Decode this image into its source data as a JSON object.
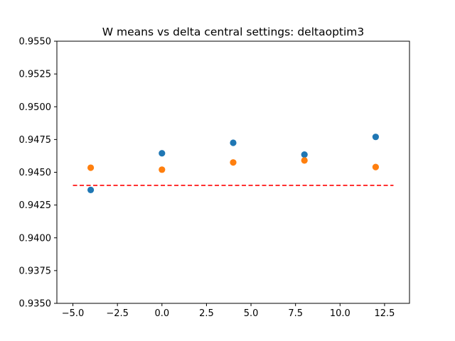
{
  "chart_data": {
    "type": "scatter",
    "title": "W means vs delta central settings: deltaoptim3",
    "xlabel": "",
    "ylabel": "",
    "xlim": [
      -5.9,
      13.9
    ],
    "ylim": [
      0.935,
      0.955
    ],
    "x_ticks": [
      -5.0,
      -2.5,
      0.0,
      2.5,
      5.0,
      7.5,
      10.0,
      12.5
    ],
    "x_tick_labels": [
      "−5.0",
      "−2.5",
      "0.0",
      "2.5",
      "5.0",
      "7.5",
      "10.0",
      "12.5"
    ],
    "y_ticks": [
      0.935,
      0.9375,
      0.94,
      0.9425,
      0.945,
      0.9475,
      0.95,
      0.9525,
      0.955
    ],
    "y_tick_labels": [
      "0.9350",
      "0.9375",
      "0.9400",
      "0.9425",
      "0.9450",
      "0.9475",
      "0.9500",
      "0.9525",
      "0.9550"
    ],
    "grid": false,
    "legend": "none",
    "series": [
      {
        "color": "#1f77b4",
        "x": [
          -4,
          0,
          4,
          8,
          12
        ],
        "y": [
          0.94365,
          0.94645,
          0.94725,
          0.94635,
          0.9477
        ]
      },
      {
        "color": "#ff7f0e",
        "x": [
          -4,
          0,
          4,
          8,
          12
        ],
        "y": [
          0.94535,
          0.9452,
          0.94575,
          0.9459,
          0.9454
        ]
      }
    ],
    "reference_line": {
      "color": "#ff0000",
      "style": "dashed",
      "y": 0.944,
      "x_range": [
        -5,
        13
      ]
    }
  }
}
